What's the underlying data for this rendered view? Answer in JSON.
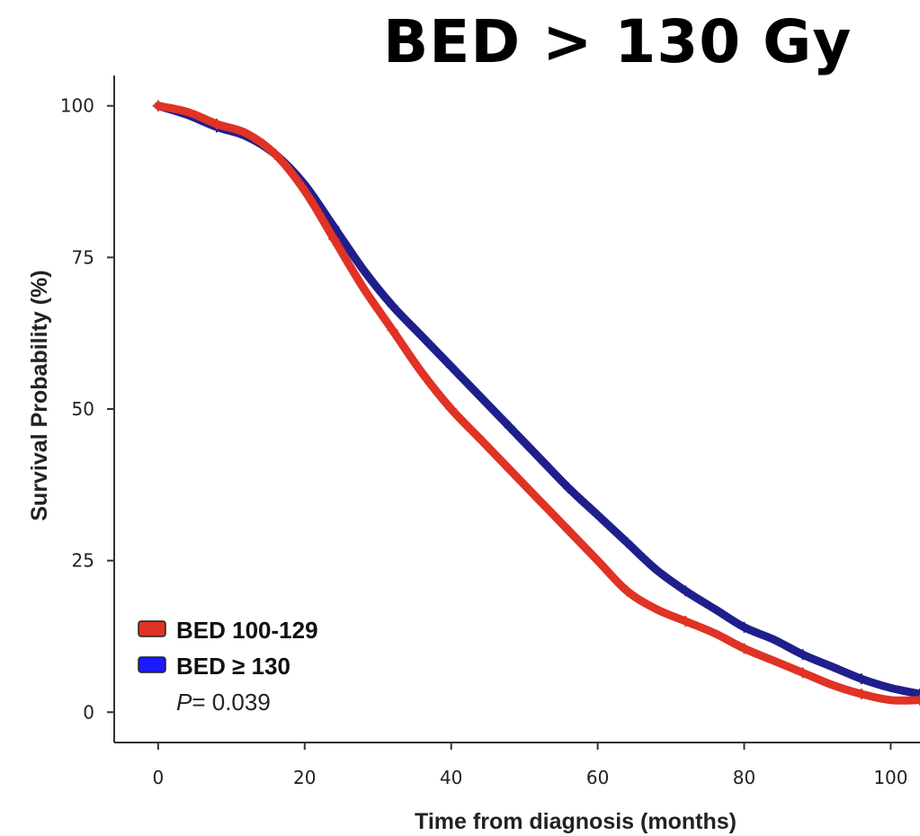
{
  "headline": "BED > 130 Gy",
  "chart_data": {
    "type": "line",
    "xlabel": "Time from diagnosis (months)",
    "ylabel": "Survival Probability (%)",
    "xlim": [
      -6,
      104
    ],
    "ylim": [
      -5,
      105
    ],
    "xticks": [
      0,
      20,
      40,
      60,
      80,
      100
    ],
    "yticks": [
      0,
      25,
      50,
      75,
      100
    ],
    "legend_position": "bottom-left",
    "p_value_label": "P",
    "p_value_text": "= 0.039",
    "series": [
      {
        "name": "BED 100-129",
        "color": "#e03225",
        "x": [
          0,
          4,
          8,
          12,
          16,
          20,
          24,
          28,
          32,
          36,
          40,
          44,
          48,
          52,
          56,
          60,
          64,
          68,
          72,
          76,
          80,
          84,
          88,
          92,
          96,
          100,
          104
        ],
        "y": [
          100,
          99,
          97,
          95.5,
          92,
          86,
          78,
          70,
          63,
          56,
          50,
          45,
          40,
          35,
          30,
          25,
          20,
          17,
          15,
          13,
          10.5,
          8.5,
          6.5,
          4.5,
          3,
          2,
          2
        ]
      },
      {
        "name": "BED ≥ 130",
        "color": "#1f1f8c",
        "x": [
          0,
          4,
          8,
          12,
          16,
          20,
          24,
          28,
          32,
          36,
          40,
          44,
          48,
          52,
          56,
          60,
          64,
          68,
          72,
          76,
          80,
          84,
          88,
          92,
          96,
          100,
          104
        ],
        "y": [
          100,
          98.5,
          96.5,
          95,
          92,
          87,
          80,
          73,
          67,
          62,
          57,
          52,
          47,
          42,
          37,
          32.5,
          28,
          23.5,
          20,
          17,
          14,
          12,
          9.5,
          7.5,
          5.5,
          4,
          3
        ]
      }
    ]
  }
}
